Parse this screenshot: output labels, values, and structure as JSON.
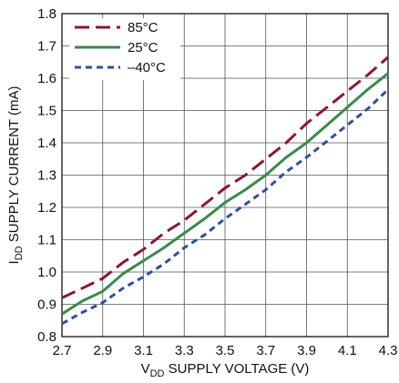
{
  "chart_data": {
    "type": "line",
    "xlabel_main": "V",
    "xlabel_sub": "DD",
    "xlabel_rest": " SUPPLY VOLTAGE (V)",
    "ylabel_main": "I",
    "ylabel_sub": "DD",
    "ylabel_rest": " SUPPLY CURRENT (mA)",
    "xlim": [
      2.7,
      4.3
    ],
    "ylim": [
      0.8,
      1.8
    ],
    "xticks": [
      "2.7",
      "2.9",
      "3.1",
      "3.3",
      "3.5",
      "3.7",
      "3.9",
      "4.1",
      "4.3"
    ],
    "yticks": [
      "0.8",
      "0.9",
      "1.0",
      "1.1",
      "1.2",
      "1.3",
      "1.4",
      "1.5",
      "1.6",
      "1.7",
      "1.8"
    ],
    "grid": true,
    "legend_position": "top-left",
    "series": [
      {
        "name": "85°C",
        "color": "#8b1538",
        "dash": "long-dash",
        "x": [
          2.7,
          2.8,
          2.9,
          3.0,
          3.05,
          3.1,
          3.2,
          3.3,
          3.4,
          3.5,
          3.6,
          3.7,
          3.8,
          3.9,
          4.0,
          4.1,
          4.2,
          4.3
        ],
        "y": [
          0.92,
          0.95,
          0.98,
          1.03,
          1.05,
          1.07,
          1.12,
          1.16,
          1.21,
          1.26,
          1.3,
          1.35,
          1.4,
          1.46,
          1.51,
          1.56,
          1.61,
          1.665
        ]
      },
      {
        "name": "25°C",
        "color": "#3a8a4a",
        "dash": "solid",
        "x": [
          2.7,
          2.8,
          2.9,
          3.0,
          3.1,
          3.2,
          3.3,
          3.4,
          3.5,
          3.6,
          3.7,
          3.8,
          3.9,
          4.0,
          4.1,
          4.2,
          4.3
        ],
        "y": [
          0.87,
          0.91,
          0.94,
          0.995,
          1.035,
          1.075,
          1.12,
          1.165,
          1.215,
          1.255,
          1.3,
          1.355,
          1.4,
          1.455,
          1.51,
          1.565,
          1.615
        ]
      },
      {
        "name": "–40°C",
        "color": "#2e4f9a",
        "dash": "short-dash",
        "x": [
          2.7,
          2.8,
          2.9,
          3.0,
          3.1,
          3.2,
          3.3,
          3.4,
          3.5,
          3.6,
          3.7,
          3.8,
          3.9,
          4.0,
          4.1,
          4.2,
          4.3
        ],
        "y": [
          0.84,
          0.875,
          0.905,
          0.95,
          0.985,
          1.025,
          1.075,
          1.115,
          1.165,
          1.21,
          1.255,
          1.31,
          1.355,
          1.405,
          1.455,
          1.505,
          1.565
        ]
      }
    ]
  }
}
